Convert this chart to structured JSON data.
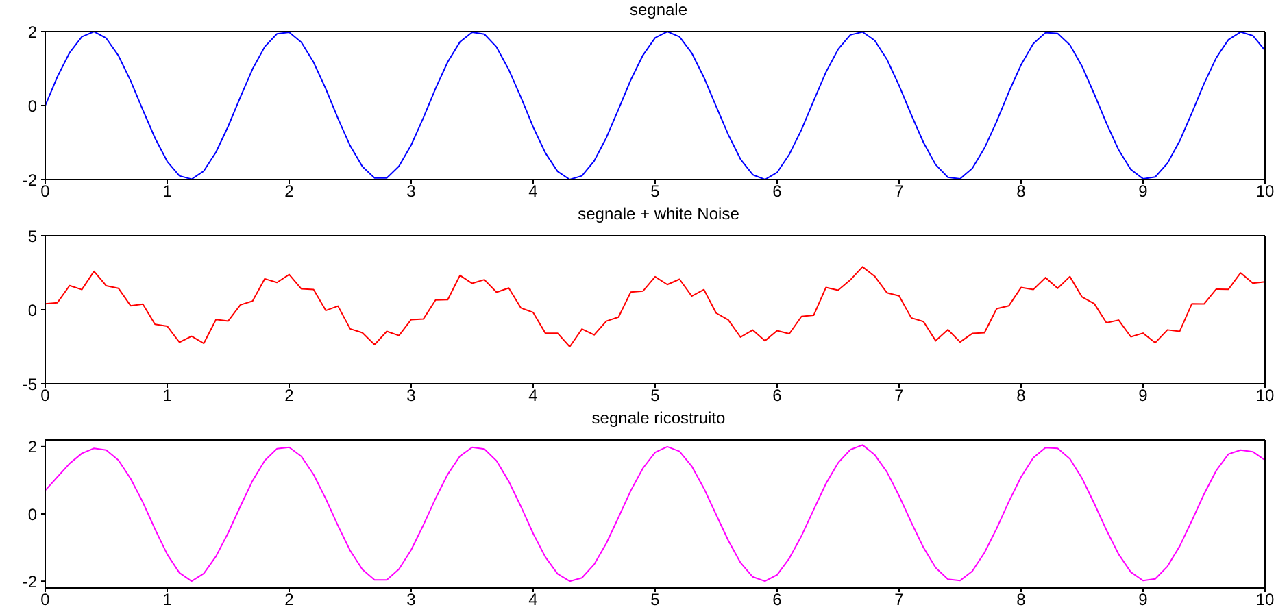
{
  "chart_data": [
    {
      "type": "line",
      "title": "segnale",
      "x": [
        0,
        0.1,
        0.2,
        0.3,
        0.4,
        0.5,
        0.6,
        0.7,
        0.8,
        0.9,
        1,
        1.1,
        1.2,
        1.3,
        1.4,
        1.5,
        1.6,
        1.7,
        1.8,
        1.9,
        2,
        2.1,
        2.2,
        2.3,
        2.4,
        2.5,
        2.6,
        2.7,
        2.8,
        2.9,
        3,
        3.1,
        3.2,
        3.3,
        3.4,
        3.5,
        3.6,
        3.7,
        3.8,
        3.9,
        4,
        4.1,
        4.2,
        4.3,
        4.4,
        4.5,
        4.6,
        4.7,
        4.8,
        4.9,
        5,
        5.1,
        5.2,
        5.3,
        5.4,
        5.5,
        5.6,
        5.7,
        5.8,
        5.9,
        6,
        6.1,
        6.2,
        6.3,
        6.4,
        6.5,
        6.6,
        6.7,
        6.8,
        6.9,
        7,
        7.1,
        7.2,
        7.3,
        7.4,
        7.5,
        7.6,
        7.7,
        7.8,
        7.9,
        8,
        8.1,
        8.2,
        8.3,
        8.4,
        8.5,
        8.6,
        8.7,
        8.8,
        8.9,
        9,
        9.1,
        9.2,
        9.3,
        9.4,
        9.5,
        9.6,
        9.7,
        9.8,
        9.9,
        10
      ],
      "series": [
        {
          "color": "#0000ff",
          "values": [
            0,
            0.78,
            1.43,
            1.86,
            2,
            1.82,
            1.35,
            0.67,
            -0.12,
            -0.88,
            -1.51,
            -1.9,
            -1.99,
            -1.77,
            -1.26,
            -0.56,
            0.23,
            0.99,
            1.59,
            1.94,
            1.98,
            1.71,
            1.17,
            0.45,
            -0.35,
            -1.09,
            -1.65,
            -1.96,
            -1.96,
            -1.64,
            -1.07,
            -0.33,
            0.46,
            1.18,
            1.72,
            1.98,
            1.93,
            1.58,
            0.97,
            0.22,
            -0.58,
            -1.28,
            -1.78,
            -2,
            -1.9,
            -1.5,
            -0.87,
            -0.1,
            0.69,
            1.36,
            1.83,
            2,
            1.86,
            1.42,
            0.76,
            -0.02,
            -0.79,
            -1.45,
            -1.87,
            -2,
            -1.81,
            -1.32,
            -0.65,
            0.13,
            0.9,
            1.52,
            1.91,
            1.99,
            1.76,
            1.25,
            0.54,
            -0.25,
            -1,
            -1.6,
            -1.94,
            -1.98,
            -1.7,
            -1.15,
            -0.43,
            0.37,
            1.1,
            1.67,
            1.97,
            1.95,
            1.64,
            1.06,
            0.31,
            -0.48,
            -1.2,
            -1.73,
            -1.98,
            -1.93,
            -1.56,
            -0.96,
            -0.2,
            0.59,
            1.29,
            1.78,
            1.99,
            1.89,
            1.49
          ]
        }
      ],
      "xlim": [
        0,
        10
      ],
      "xticks": [
        0,
        1,
        2,
        3,
        4,
        5,
        6,
        7,
        8,
        9,
        10
      ],
      "ylim": [
        -2,
        2
      ],
      "yticks": [
        -2,
        0,
        2
      ]
    },
    {
      "type": "line",
      "title": "segnale + white Noise",
      "x": [
        0,
        0.1,
        0.2,
        0.3,
        0.4,
        0.5,
        0.6,
        0.7,
        0.8,
        0.9,
        1,
        1.1,
        1.2,
        1.3,
        1.4,
        1.5,
        1.6,
        1.7,
        1.8,
        1.9,
        2,
        2.1,
        2.2,
        2.3,
        2.4,
        2.5,
        2.6,
        2.7,
        2.8,
        2.9,
        3,
        3.1,
        3.2,
        3.3,
        3.4,
        3.5,
        3.6,
        3.7,
        3.8,
        3.9,
        4,
        4.1,
        4.2,
        4.3,
        4.4,
        4.5,
        4.6,
        4.7,
        4.8,
        4.9,
        5,
        5.1,
        5.2,
        5.3,
        5.4,
        5.5,
        5.6,
        5.7,
        5.8,
        5.9,
        6,
        6.1,
        6.2,
        6.3,
        6.4,
        6.5,
        6.6,
        6.7,
        6.8,
        6.9,
        7,
        7.1,
        7.2,
        7.3,
        7.4,
        7.5,
        7.6,
        7.7,
        7.8,
        7.9,
        8,
        8.1,
        8.2,
        8.3,
        8.4,
        8.5,
        8.6,
        8.7,
        8.8,
        8.9,
        9,
        9.1,
        9.2,
        9.3,
        9.4,
        9.5,
        9.6,
        9.7,
        9.8,
        9.9,
        10
      ],
      "series": [
        {
          "color": "#ff0000",
          "values": [
            0.4,
            0.48,
            1.63,
            1.36,
            2.6,
            1.62,
            1.45,
            0.27,
            0.38,
            -0.98,
            -1.11,
            -2.2,
            -1.79,
            -2.27,
            -0.66,
            -0.76,
            0.33,
            0.59,
            2.09,
            1.84,
            2.38,
            1.41,
            1.37,
            -0.05,
            0.25,
            -1.29,
            -1.55,
            -2.36,
            -1.46,
            -1.74,
            -0.67,
            -0.63,
            0.66,
            0.68,
            2.32,
            1.78,
            2.03,
            1.18,
            1.47,
            0.12,
            -0.18,
            -1.58,
            -1.58,
            -2.5,
            -1.3,
            -1.7,
            -0.77,
            -0.5,
            1.19,
            1.26,
            2.23,
            1.7,
            2.06,
            0.92,
            1.36,
            -0.22,
            -0.69,
            -1.85,
            -1.37,
            -2.1,
            -1.41,
            -1.62,
            -0.45,
            -0.37,
            1.5,
            1.32,
            2.01,
            2.9,
            2.26,
            1.15,
            0.94,
            -0.55,
            -0.8,
            -2.1,
            -1.34,
            -2.18,
            -1.6,
            -1.55,
            0.07,
            0.27,
            1.5,
            1.37,
            2.17,
            1.45,
            2.24,
            0.86,
            0.41,
            -0.88,
            -0.7,
            -1.83,
            -1.58,
            -2.23,
            -1.36,
            -1.46,
            0.4,
            0.39,
            1.39,
            1.38,
            2.49,
            1.79,
            1.89
          ]
        }
      ],
      "xlim": [
        0,
        10
      ],
      "xticks": [
        0,
        1,
        2,
        3,
        4,
        5,
        6,
        7,
        8,
        9,
        10
      ],
      "ylim": [
        -5,
        5
      ],
      "yticks": [
        -5,
        0,
        5
      ]
    },
    {
      "type": "line",
      "title": "segnale ricostruito",
      "x": [
        0,
        0.1,
        0.2,
        0.3,
        0.4,
        0.5,
        0.6,
        0.7,
        0.8,
        0.9,
        1,
        1.1,
        1.2,
        1.3,
        1.4,
        1.5,
        1.6,
        1.7,
        1.8,
        1.9,
        2,
        2.1,
        2.2,
        2.3,
        2.4,
        2.5,
        2.6,
        2.7,
        2.8,
        2.9,
        3,
        3.1,
        3.2,
        3.3,
        3.4,
        3.5,
        3.6,
        3.7,
        3.8,
        3.9,
        4,
        4.1,
        4.2,
        4.3,
        4.4,
        4.5,
        4.6,
        4.7,
        4.8,
        4.9,
        5,
        5.1,
        5.2,
        5.3,
        5.4,
        5.5,
        5.6,
        5.7,
        5.8,
        5.9,
        6,
        6.1,
        6.2,
        6.3,
        6.4,
        6.5,
        6.6,
        6.7,
        6.8,
        6.9,
        7,
        7.1,
        7.2,
        7.3,
        7.4,
        7.5,
        7.6,
        7.7,
        7.8,
        7.9,
        8,
        8.1,
        8.2,
        8.3,
        8.4,
        8.5,
        8.6,
        8.7,
        8.8,
        8.9,
        9,
        9.1,
        9.2,
        9.3,
        9.4,
        9.5,
        9.6,
        9.7,
        9.8,
        9.9,
        10
      ],
      "series": [
        {
          "color": "#ff00ff",
          "values": [
            0.7,
            1.1,
            1.5,
            1.8,
            1.95,
            1.9,
            1.6,
            1.05,
            0.35,
            -0.45,
            -1.2,
            -1.75,
            -2,
            -1.77,
            -1.26,
            -0.56,
            0.23,
            0.99,
            1.59,
            1.94,
            1.98,
            1.71,
            1.17,
            0.45,
            -0.35,
            -1.09,
            -1.65,
            -1.96,
            -1.96,
            -1.64,
            -1.07,
            -0.33,
            0.46,
            1.18,
            1.72,
            1.98,
            1.93,
            1.58,
            0.97,
            0.22,
            -0.58,
            -1.28,
            -1.78,
            -2,
            -1.9,
            -1.5,
            -0.87,
            -0.1,
            0.69,
            1.36,
            1.83,
            2,
            1.86,
            1.42,
            0.76,
            -0.02,
            -0.79,
            -1.45,
            -1.87,
            -2,
            -1.81,
            -1.32,
            -0.65,
            0.13,
            0.9,
            1.52,
            1.91,
            2.05,
            1.76,
            1.25,
            0.54,
            -0.25,
            -1,
            -1.6,
            -1.94,
            -1.98,
            -1.7,
            -1.15,
            -0.43,
            0.37,
            1.1,
            1.67,
            1.97,
            1.95,
            1.64,
            1.06,
            0.31,
            -0.48,
            -1.2,
            -1.73,
            -1.98,
            -1.93,
            -1.56,
            -0.96,
            -0.2,
            0.59,
            1.29,
            1.78,
            1.9,
            1.85,
            1.6
          ]
        }
      ],
      "xlim": [
        0,
        10
      ],
      "xticks": [
        0,
        1,
        2,
        3,
        4,
        5,
        6,
        7,
        8,
        9,
        10
      ],
      "ylim": [
        -2.2,
        2.2
      ],
      "yticks": [
        -2,
        0,
        2
      ]
    }
  ]
}
